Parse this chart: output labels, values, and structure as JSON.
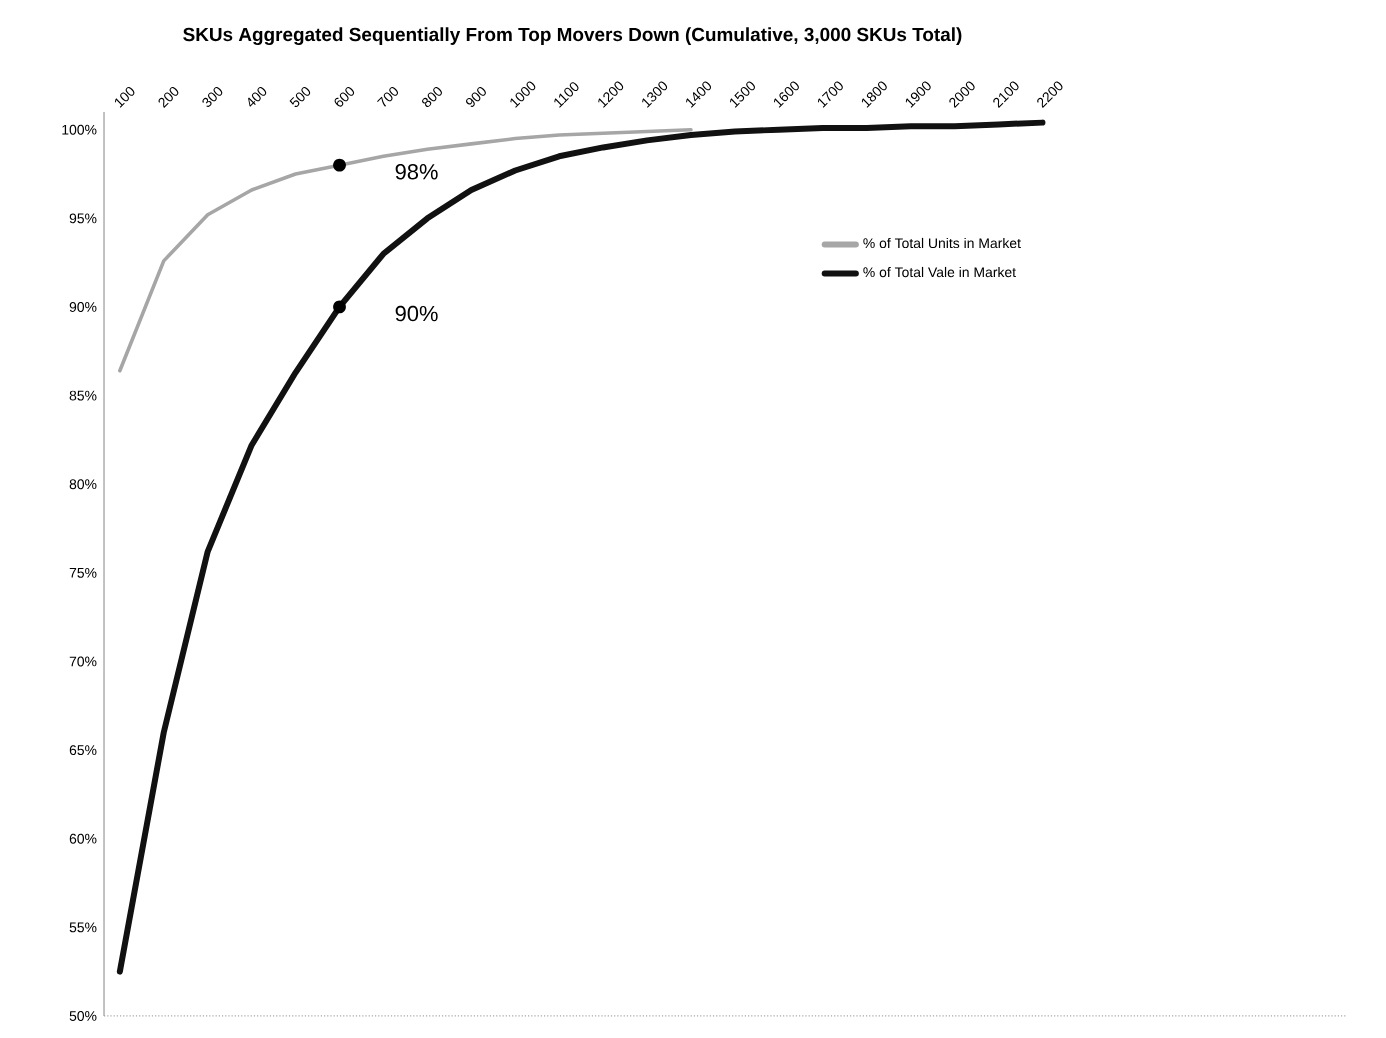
{
  "chart_data": {
    "type": "line",
    "title": "SKUs Aggregated Sequentially From Top Movers Down (Cumulative, 3,000 SKUs Total)",
    "categories": [
      "100",
      "200",
      "300",
      "400",
      "500",
      "600",
      "700",
      "800",
      "900",
      "1000",
      "1100",
      "1200",
      "1300",
      "1400",
      "1500",
      "1600",
      "1700",
      "1800",
      "1900",
      "2000",
      "2100",
      "2200"
    ],
    "series": [
      {
        "name": "% of Total Units in Market",
        "color": "#a6a6a6",
        "values": [
          86.4,
          92.6,
          95.2,
          96.6,
          97.5,
          98,
          98.5,
          98.9,
          99.2,
          99.5,
          99.7,
          99.8,
          99.9,
          100,
          null,
          null,
          null,
          null,
          null,
          null,
          null,
          null
        ]
      },
      {
        "name": "% of Total Vale in Market",
        "color": "#111111",
        "values": [
          52.5,
          66,
          76.2,
          82.2,
          86.3,
          90,
          93,
          95,
          96.6,
          97.7,
          98.5,
          99,
          99.4,
          99.7,
          99.9,
          100,
          100.1,
          100.1,
          100.2,
          100.2,
          100.3,
          100.4
        ]
      }
    ],
    "ylim": [
      50,
      101
    ],
    "yticks": [
      {
        "value": 50,
        "label": "50%"
      },
      {
        "value": 55,
        "label": "55%"
      },
      {
        "value": 60,
        "label": "60%"
      },
      {
        "value": 65,
        "label": "65%"
      },
      {
        "value": 70,
        "label": "70%"
      },
      {
        "value": 75,
        "label": "75%"
      },
      {
        "value": 80,
        "label": "80%"
      },
      {
        "value": 85,
        "label": "85%"
      },
      {
        "value": 90,
        "label": "90%"
      },
      {
        "value": 95,
        "label": "95%"
      },
      {
        "value": 100,
        "label": "100%"
      }
    ],
    "annotations": [
      {
        "text": "98%",
        "x": "600",
        "y": 98
      },
      {
        "text": "90%",
        "x": "600",
        "y": 90
      }
    ],
    "legend": "top right",
    "grid": false,
    "marker": "none",
    "line_style": "solid"
  }
}
